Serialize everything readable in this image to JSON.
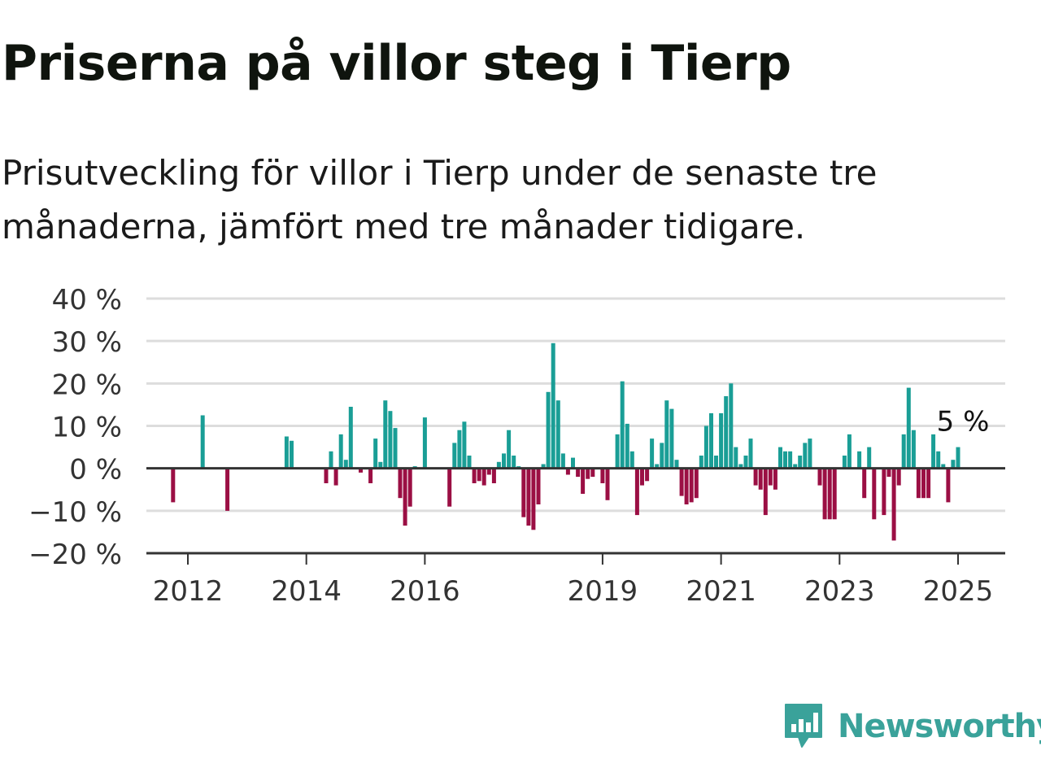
{
  "title": "Priserna på villor steg i Tierp",
  "subtitle": "Prisutveckling för villor i Tierp under de senaste tre månaderna, jämfört med tre månader tidigare.",
  "brand": {
    "name": "Newsworthy",
    "color": "#3aa29a",
    "icon": "newsworthy-bar-chart-icon"
  },
  "colors": {
    "positive": "#1a9e96",
    "negative": "#9b0f44",
    "gridline": "#dddddd",
    "axis": "#333333"
  },
  "chart_data": {
    "type": "bar",
    "title": "Priserna på villor steg i Tierp",
    "xlabel": "",
    "ylabel": "",
    "ylim": [
      -20,
      40
    ],
    "y_ticks": [
      -20,
      -10,
      0,
      10,
      20,
      30,
      40
    ],
    "y_tick_labels": [
      "−20 %",
      "−10 %",
      "0 %",
      "10 %",
      "20 %",
      "30 %",
      "40 %"
    ],
    "x_ticks": [
      {
        "date": "2012-01",
        "label": "2012"
      },
      {
        "date": "2014-01",
        "label": "2014"
      },
      {
        "date": "2016-01",
        "label": "2016"
      },
      {
        "date": "2019-01",
        "label": "2019"
      },
      {
        "date": "2021-01",
        "label": "2021"
      },
      {
        "date": "2023-01",
        "label": "2023"
      },
      {
        "date": "2025-01",
        "label": "2025"
      }
    ],
    "grid": true,
    "annotation": {
      "date": "2025-01",
      "value": 5,
      "label": "5 %"
    },
    "series": [
      {
        "values": [
          {
            "date": "2011-10",
            "value": -8
          },
          {
            "date": "2012-04",
            "value": 12.5
          },
          {
            "date": "2012-09",
            "value": -10
          },
          {
            "date": "2013-09",
            "value": 7.5
          },
          {
            "date": "2013-10",
            "value": 6.5
          },
          {
            "date": "2014-05",
            "value": -3.5
          },
          {
            "date": "2014-06",
            "value": 4
          },
          {
            "date": "2014-07",
            "value": -4
          },
          {
            "date": "2014-08",
            "value": 8
          },
          {
            "date": "2014-09",
            "value": 2
          },
          {
            "date": "2014-10",
            "value": 14.5
          },
          {
            "date": "2014-12",
            "value": -1
          },
          {
            "date": "2015-02",
            "value": -3.5
          },
          {
            "date": "2015-03",
            "value": 7
          },
          {
            "date": "2015-04",
            "value": 1.5
          },
          {
            "date": "2015-05",
            "value": 16
          },
          {
            "date": "2015-06",
            "value": 13.5
          },
          {
            "date": "2015-07",
            "value": 9.5
          },
          {
            "date": "2015-08",
            "value": -7
          },
          {
            "date": "2015-09",
            "value": -13.5
          },
          {
            "date": "2015-10",
            "value": -9
          },
          {
            "date": "2015-11",
            "value": 0.5
          },
          {
            "date": "2016-01",
            "value": 12
          },
          {
            "date": "2016-06",
            "value": -9
          },
          {
            "date": "2016-07",
            "value": 6
          },
          {
            "date": "2016-08",
            "value": 9
          },
          {
            "date": "2016-09",
            "value": 11
          },
          {
            "date": "2016-10",
            "value": 3
          },
          {
            "date": "2016-11",
            "value": -3.5
          },
          {
            "date": "2016-12",
            "value": -3
          },
          {
            "date": "2017-01",
            "value": -4
          },
          {
            "date": "2017-02",
            "value": -1.5
          },
          {
            "date": "2017-03",
            "value": -3.5
          },
          {
            "date": "2017-04",
            "value": 1.5
          },
          {
            "date": "2017-05",
            "value": 3.5
          },
          {
            "date": "2017-06",
            "value": 9
          },
          {
            "date": "2017-07",
            "value": 3
          },
          {
            "date": "2017-08",
            "value": 0.5
          },
          {
            "date": "2017-09",
            "value": -11.5
          },
          {
            "date": "2017-10",
            "value": -13.5
          },
          {
            "date": "2017-11",
            "value": -14.5
          },
          {
            "date": "2017-12",
            "value": -8.5
          },
          {
            "date": "2018-01",
            "value": 1
          },
          {
            "date": "2018-02",
            "value": 18
          },
          {
            "date": "2018-03",
            "value": 29.5
          },
          {
            "date": "2018-04",
            "value": 16
          },
          {
            "date": "2018-05",
            "value": 3.5
          },
          {
            "date": "2018-06",
            "value": -1.5
          },
          {
            "date": "2018-07",
            "value": 2.5
          },
          {
            "date": "2018-08",
            "value": -2
          },
          {
            "date": "2018-09",
            "value": -6
          },
          {
            "date": "2018-10",
            "value": -2.5
          },
          {
            "date": "2018-11",
            "value": -2
          },
          {
            "date": "2019-01",
            "value": -3.5
          },
          {
            "date": "2019-02",
            "value": -7.5
          },
          {
            "date": "2019-04",
            "value": 8
          },
          {
            "date": "2019-05",
            "value": 20.5
          },
          {
            "date": "2019-06",
            "value": 10.5
          },
          {
            "date": "2019-07",
            "value": 4
          },
          {
            "date": "2019-08",
            "value": -11
          },
          {
            "date": "2019-09",
            "value": -4
          },
          {
            "date": "2019-10",
            "value": -3
          },
          {
            "date": "2019-11",
            "value": 7
          },
          {
            "date": "2019-12",
            "value": 1
          },
          {
            "date": "2020-01",
            "value": 6
          },
          {
            "date": "2020-02",
            "value": 16
          },
          {
            "date": "2020-03",
            "value": 14
          },
          {
            "date": "2020-04",
            "value": 2
          },
          {
            "date": "2020-05",
            "value": -6.5
          },
          {
            "date": "2020-06",
            "value": -8.5
          },
          {
            "date": "2020-07",
            "value": -8
          },
          {
            "date": "2020-08",
            "value": -7
          },
          {
            "date": "2020-09",
            "value": 3
          },
          {
            "date": "2020-10",
            "value": 10
          },
          {
            "date": "2020-11",
            "value": 13
          },
          {
            "date": "2020-12",
            "value": 3
          },
          {
            "date": "2021-01",
            "value": 13
          },
          {
            "date": "2021-02",
            "value": 17
          },
          {
            "date": "2021-03",
            "value": 20
          },
          {
            "date": "2021-04",
            "value": 5
          },
          {
            "date": "2021-05",
            "value": 1
          },
          {
            "date": "2021-06",
            "value": 3
          },
          {
            "date": "2021-07",
            "value": 7
          },
          {
            "date": "2021-08",
            "value": -4
          },
          {
            "date": "2021-09",
            "value": -5
          },
          {
            "date": "2021-10",
            "value": -11
          },
          {
            "date": "2021-11",
            "value": -4
          },
          {
            "date": "2021-12",
            "value": -5
          },
          {
            "date": "2022-01",
            "value": 5
          },
          {
            "date": "2022-02",
            "value": 4
          },
          {
            "date": "2022-03",
            "value": 4
          },
          {
            "date": "2022-04",
            "value": 1
          },
          {
            "date": "2022-05",
            "value": 3
          },
          {
            "date": "2022-06",
            "value": 6
          },
          {
            "date": "2022-07",
            "value": 7
          },
          {
            "date": "2022-09",
            "value": -4
          },
          {
            "date": "2022-10",
            "value": -12
          },
          {
            "date": "2022-11",
            "value": -12
          },
          {
            "date": "2022-12",
            "value": -12
          },
          {
            "date": "2023-02",
            "value": 3
          },
          {
            "date": "2023-03",
            "value": 8
          },
          {
            "date": "2023-05",
            "value": 4
          },
          {
            "date": "2023-06",
            "value": -7
          },
          {
            "date": "2023-07",
            "value": 5
          },
          {
            "date": "2023-08",
            "value": -12
          },
          {
            "date": "2023-10",
            "value": -11
          },
          {
            "date": "2023-11",
            "value": -2
          },
          {
            "date": "2023-12",
            "value": -17
          },
          {
            "date": "2024-01",
            "value": -4
          },
          {
            "date": "2024-02",
            "value": 8
          },
          {
            "date": "2024-03",
            "value": 19
          },
          {
            "date": "2024-04",
            "value": 9
          },
          {
            "date": "2024-05",
            "value": -7
          },
          {
            "date": "2024-06",
            "value": -7
          },
          {
            "date": "2024-07",
            "value": -7
          },
          {
            "date": "2024-08",
            "value": 8
          },
          {
            "date": "2024-09",
            "value": 4
          },
          {
            "date": "2024-10",
            "value": 1
          },
          {
            "date": "2024-11",
            "value": -8
          },
          {
            "date": "2024-12",
            "value": 2
          },
          {
            "date": "2025-01",
            "value": 5
          }
        ]
      }
    ]
  }
}
